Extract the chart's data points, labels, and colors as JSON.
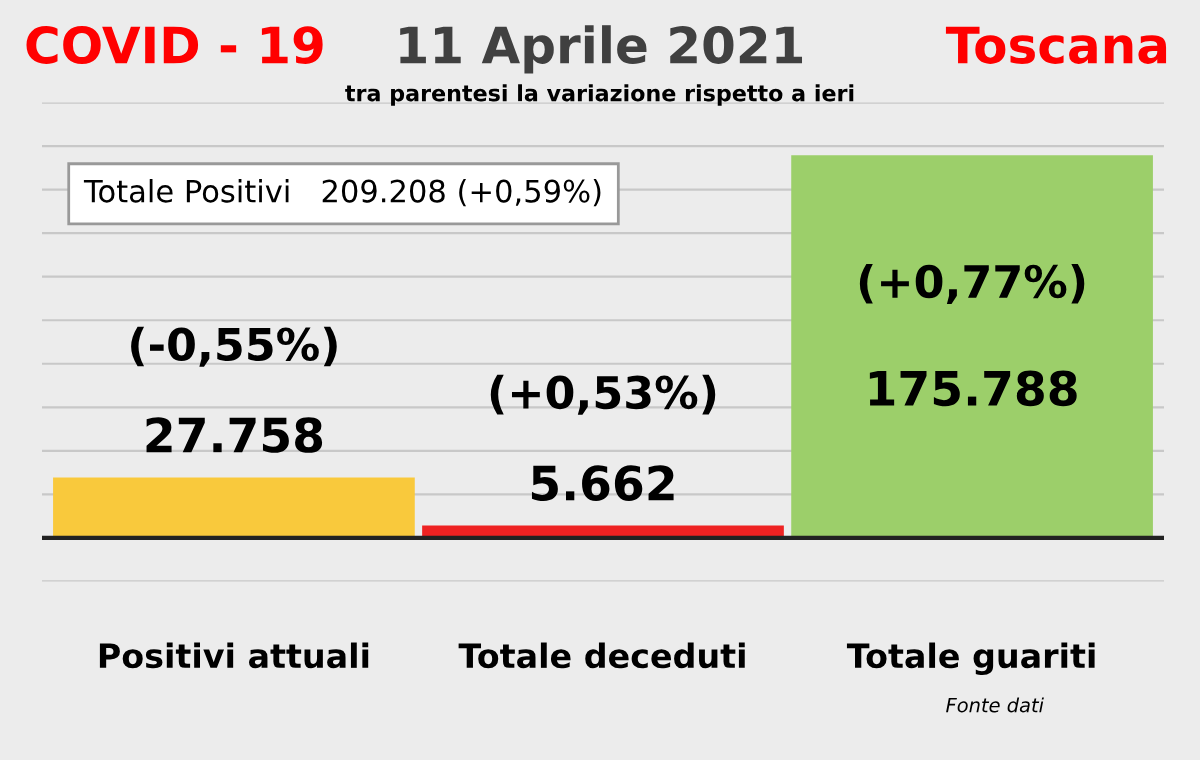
{
  "chart_data": {
    "type": "bar",
    "title": "11 Aprile 2021",
    "subtitle": "tra parentesi la variazione rispetto a ieri",
    "categories": [
      "Positivi attuali",
      "Totale deceduti",
      "Totale guariti"
    ],
    "values": [
      27758,
      5662,
      175788
    ],
    "colors": [
      "#f9c93c",
      "#ee2222",
      "#9ccf6a"
    ],
    "value_labels": [
      "27.758",
      "5.662",
      "175.788"
    ],
    "ylim": [
      -20000,
      200000
    ],
    "yticks": [
      {
        "value": -20000,
        "label": null
      },
      {
        "value": 0,
        "label": null
      },
      {
        "value": 20000,
        "label": null
      },
      {
        "value": 40000,
        "label": null
      },
      {
        "value": 60000,
        "label": null
      },
      {
        "value": 80000,
        "label": null
      },
      {
        "value": 100000,
        "label": null
      },
      {
        "value": 120000,
        "label": null
      },
      {
        "value": 140000,
        "label": null
      },
      {
        "value": 160000,
        "label": null
      },
      {
        "value": 180000,
        "label": null
      },
      {
        "value": 200000,
        "label": null
      }
    ],
    "tick_labels": "x",
    "grid": "y",
    "ref_lines": [
      {
        "axis": "y",
        "value": 0,
        "color": "#222222"
      }
    ],
    "annotations": [
      "COVID - 19",
      "Toscana",
      "Totale Positivi   209.208 (+0,59%)",
      "(-0,55%)",
      "(+0,53%)",
      "(+0,77%)",
      "Fonte dati"
    ]
  }
}
